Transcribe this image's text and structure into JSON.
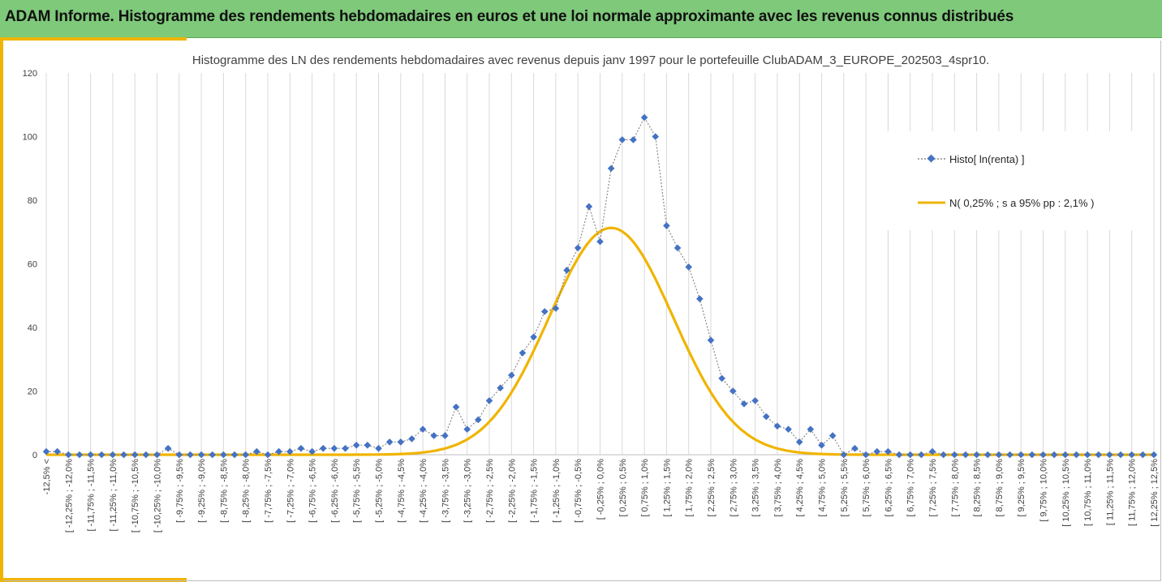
{
  "banner": {
    "title": "ADAM Informe. Histogramme des rendements hebdomadaires en euros et une loi normale approximante avec les revenus connus distribués"
  },
  "colors": {
    "banner_bg": "#7ec97a",
    "accent": "#f0b400",
    "histo_marker": "#4472c4",
    "normal_curve": "#f0b400"
  },
  "chart_data": {
    "type": "line",
    "title": "Histogramme des LN des rendements hebdomadaires avec revenus depuis janv 1997 pour le portefeuille ClubADAM_3_EUROPE_202503_4spr10.",
    "ylim": [
      0,
      120
    ],
    "yticks": [
      0,
      20,
      40,
      60,
      80,
      100,
      120
    ],
    "grid": "vertical",
    "legend_position": "right",
    "categories": [
      "-12,5% <",
      "[ -12,25% ; -12,0%",
      "[ -11,75% ; -11,5%",
      "[ -11,25% ; -11,0%",
      "[ -10,75% ; -10,5%",
      "[ -10,25% ; -10,0%",
      "[ -9,75% ; -9,5%",
      "[ -9,25% ; -9,0%",
      "[ -8,75% ; -8,5%",
      "[ -8,25% ; -8,0%",
      "[ -7,75% ; -7,5%",
      "[ -7,25% ; -7,0%",
      "[ -6,75% ; -6,5%",
      "[ -6,25% ; -6,0%",
      "[ -5,75% ; -5,5%",
      "[ -5,25% ; -5,0%",
      "[ -4,75% ; -4,5%",
      "[ -4,25% ; -4,0%",
      "[ -3,75% ; -3,5%",
      "[ -3,25% ; -3,0%",
      "[ -2,75% ; -2,5%",
      "[ -2,25% ; -2,0%",
      "[ -1,75% ; -1,5%",
      "[ -1,25% ; -1,0%",
      "[ -0,75% ; -0,5%",
      "[ -0,25% ; 0,0%",
      "[ 0,25% ; 0,5%",
      "[ 0,75% ; 1,0%",
      "[ 1,25% ; 1,5%",
      "[ 1,75% ; 2,0%",
      "[ 2,25% ; 2,5%",
      "[ 2,75% ; 3,0%",
      "[ 3,25% ; 3,5%",
      "[ 3,75% ; 4,0%",
      "[ 4,25% ; 4,5%",
      "[ 4,75% ; 5,0%",
      "[ 5,25% ; 5,5%",
      "[ 5,75% ; 6,0%",
      "[ 6,25% ; 6,5%",
      "[ 6,75% ; 7,0%",
      "[ 7,25% ; 7,5%",
      "[ 7,75% ; 8,0%",
      "[ 8,25% ; 8,5%",
      "[ 8,75% ; 9,0%",
      "[ 9,25% ; 9,5%",
      "[ 9,75% ; 10,0%",
      "[ 10,25% ; 10,5%",
      "[ 10,75% ; 11,0%",
      "[ 11,25% ; 11,5%",
      "[ 11,75% ; 12,0%",
      "[ 12,25% ; 12,5%"
    ],
    "x": [
      -12.5,
      -12.25,
      -12.0,
      -11.75,
      -11.5,
      -11.25,
      -11.0,
      -10.75,
      -10.5,
      -10.25,
      -10.0,
      -9.75,
      -9.5,
      -9.25,
      -9.0,
      -8.75,
      -8.5,
      -8.25,
      -8.0,
      -7.75,
      -7.5,
      -7.25,
      -7.0,
      -6.75,
      -6.5,
      -6.25,
      -6.0,
      -5.75,
      -5.5,
      -5.25,
      -5.0,
      -4.75,
      -4.5,
      -4.25,
      -4.0,
      -3.75,
      -3.5,
      -3.25,
      -3.0,
      -2.75,
      -2.5,
      -2.25,
      -2.0,
      -1.75,
      -1.5,
      -1.25,
      -1.0,
      -0.75,
      -0.5,
      -0.25,
      0.0,
      0.25,
      0.5,
      0.75,
      1.0,
      1.25,
      1.5,
      1.75,
      2.0,
      2.25,
      2.5,
      2.75,
      3.0,
      3.25,
      3.5,
      3.75,
      4.0,
      4.25,
      4.5,
      4.75,
      5.0,
      5.25,
      5.5,
      5.75,
      6.0,
      6.25,
      6.5,
      6.75,
      7.0,
      7.25,
      7.5,
      7.75,
      8.0,
      8.25,
      8.5,
      8.75,
      9.0,
      9.25,
      9.5,
      9.75,
      10.0,
      10.25,
      10.5,
      10.75,
      11.0,
      11.25,
      11.5,
      11.75,
      12.0,
      12.25,
      12.5
    ],
    "series": [
      {
        "name": "Histo[ ln(renta) ]",
        "style": "dotted-line-diamond",
        "values": [
          1,
          1,
          0,
          0,
          0,
          0,
          0,
          0,
          0,
          0,
          0,
          2,
          0,
          0,
          0,
          0,
          0,
          0,
          0,
          1,
          0,
          1,
          1,
          2,
          1,
          2,
          2,
          2,
          3,
          3,
          2,
          4,
          4,
          5,
          8,
          6,
          6,
          15,
          8,
          11,
          17,
          21,
          25,
          32,
          37,
          45,
          46,
          58,
          65,
          78,
          67,
          90,
          99,
          99,
          106,
          100,
          72,
          65,
          59,
          49,
          36,
          24,
          20,
          16,
          17,
          12,
          9,
          8,
          4,
          8,
          3,
          6,
          0,
          2,
          0,
          1,
          1,
          0,
          0,
          0,
          1,
          0,
          0,
          0,
          0,
          0,
          0,
          0,
          0,
          0,
          0,
          0,
          0,
          0,
          0,
          0,
          0,
          0,
          0,
          0,
          0
        ]
      },
      {
        "name": "N( 0,25% ; s a 95% pp : 2,1% )",
        "style": "solid-line",
        "mean": 0.25,
        "sd": 1.4,
        "peak": 71.3
      }
    ]
  }
}
